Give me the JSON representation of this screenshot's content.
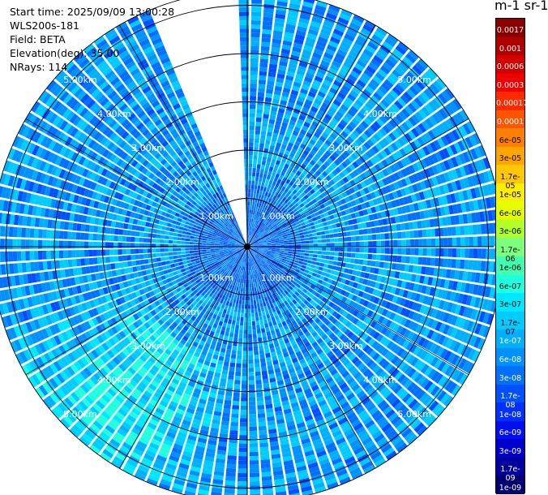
{
  "header": {
    "start_time": "Start time: 2025/09/09 13:00:28",
    "instrument": "WLS200s-181",
    "field": "Field: BETA",
    "elevation": "Elevation(deg): 35.00",
    "nrays": "NRays: 114"
  },
  "colorbar": {
    "unit_label": "m-1 sr-1",
    "ticks": [
      "0.0017",
      "0.001",
      "0.0006",
      "0.0003",
      "0.00017",
      "0.0001",
      "6e-05",
      "3e-05",
      "1.7e-05",
      "1e-05",
      "6e-06",
      "3e-06",
      "1.7e-06",
      "1e-06",
      "6e-07",
      "3e-07",
      "1.7e-07",
      "1e-07",
      "6e-08",
      "3e-08",
      "1.7e-08",
      "1e-08",
      "6e-09",
      "3e-09",
      "1.7e-09",
      "1e-09"
    ],
    "colors": [
      "#8b0000",
      "#b00000",
      "#d40000",
      "#f00000",
      "#ff2a00",
      "#ff5500",
      "#ff8000",
      "#ffa500",
      "#ffc800",
      "#ffee00",
      "#e6ff00",
      "#b0ff2a",
      "#7cff7c",
      "#40ffb0",
      "#20ffe0",
      "#00e8ff",
      "#00ccff",
      "#00b0ff",
      "#0090ff",
      "#0070ff",
      "#0050ff",
      "#0030ff",
      "#0010ee",
      "#0000cc",
      "#0000a0",
      "#000070"
    ]
  },
  "chart_data": {
    "type": "polar-ppi",
    "field": "BETA",
    "nrays": 114,
    "azimuth_gap_deg": [
      338,
      358
    ],
    "range_rings_km": [
      1,
      2,
      3,
      4,
      5
    ],
    "ring_labels": [
      "1.00km",
      "2.00km",
      "3.00km",
      "4.00km",
      "5.00km"
    ],
    "max_range_km": 5.3,
    "value_range": [
      "1e-09",
      "0.0017"
    ],
    "typical_value_range": [
      "1e-08",
      "1.7e-07"
    ],
    "enhanced_region": {
      "azimuth_deg": [
        190,
        250
      ],
      "range_km": [
        2.5,
        5.3
      ],
      "value": "1.7e-07"
    }
  }
}
